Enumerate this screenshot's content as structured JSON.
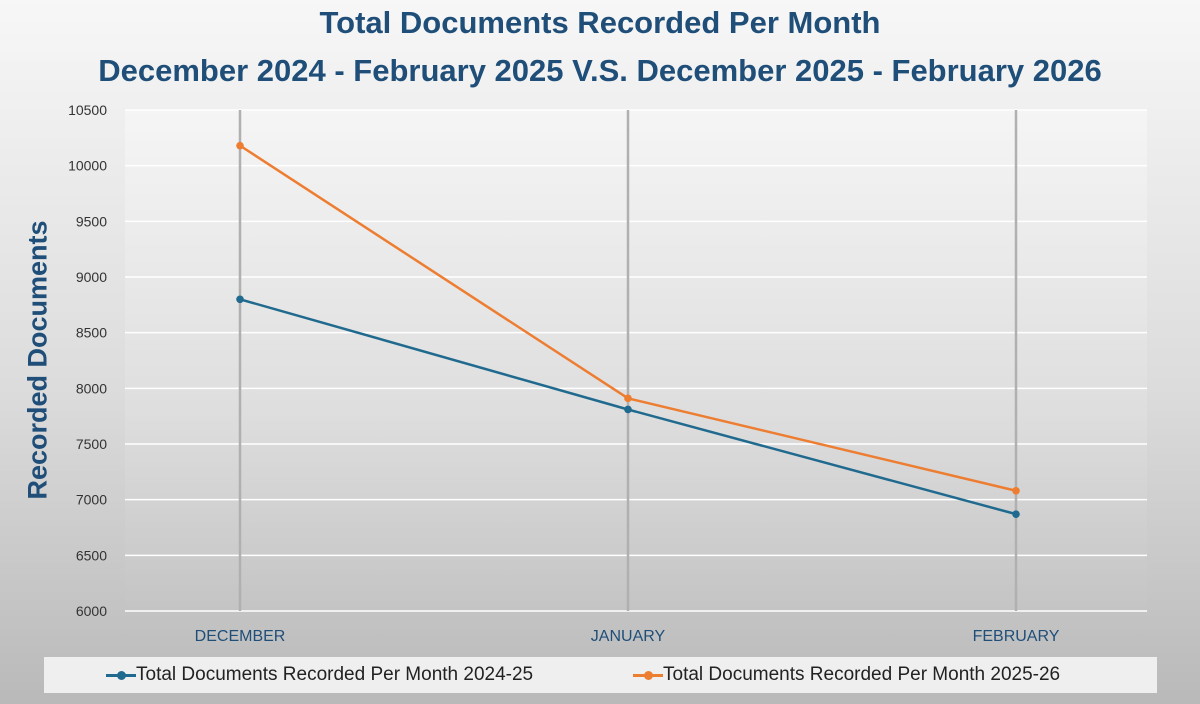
{
  "colors": {
    "title": "#1f4e79",
    "series_1": "#1f6a8e",
    "series_2": "#ed7d31",
    "gridline": "#ffffff"
  },
  "chart_data": {
    "type": "line",
    "title": "Total Documents Recorded Per Month",
    "subtitle": "December 2024 - February 2025 V.S. December 2025 - February 2026",
    "xlabel": "",
    "ylabel": "Recorded Documents",
    "categories": [
      "DECEMBER",
      "JANUARY",
      "FEBRUARY"
    ],
    "ylim": [
      6000,
      10500
    ],
    "yticks": [
      6000,
      6500,
      7000,
      7500,
      8000,
      8500,
      9000,
      9500,
      10000,
      10500
    ],
    "grid": true,
    "legend_position": "bottom",
    "series": [
      {
        "name": "Total Documents Recorded Per Month 2024-25",
        "color": "#1f6a8e",
        "values": [
          8800,
          7810,
          6870
        ]
      },
      {
        "name": "Total Documents Recorded Per Month 2025-26",
        "color": "#ed7d31",
        "values": [
          10180,
          7910,
          7080
        ]
      }
    ]
  }
}
